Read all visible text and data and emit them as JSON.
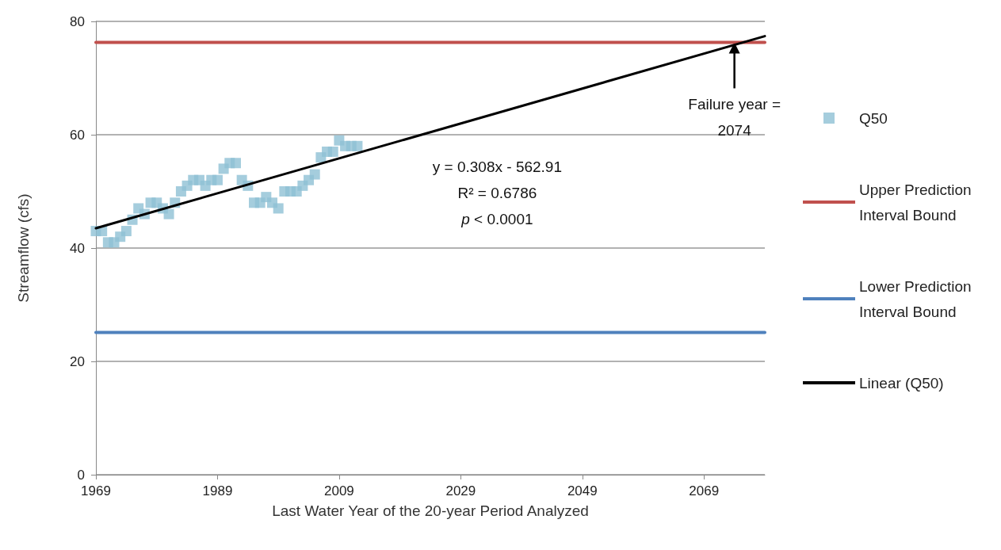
{
  "chart_data": {
    "type": "scatter",
    "xlabel": "Last Water Year of the 20-year Period Analyzed",
    "ylabel": "Streamflow (cfs)",
    "xlim": [
      1969,
      2079
    ],
    "xticks": [
      1969,
      1989,
      2009,
      2029,
      2049,
      2069
    ],
    "ylim": [
      0,
      80
    ],
    "yticks": [
      0,
      20,
      40,
      60,
      80
    ],
    "grid": "y",
    "legend": "right",
    "series": [
      {
        "name": "Q50",
        "marker": "square",
        "color": "#8fc1d4",
        "x": [
          1969,
          1970,
          1971,
          1972,
          1973,
          1974,
          1975,
          1976,
          1977,
          1978,
          1979,
          1980,
          1981,
          1982,
          1983,
          1984,
          1985,
          1986,
          1987,
          1988,
          1989,
          1990,
          1991,
          1992,
          1993,
          1994,
          1995,
          1996,
          1997,
          1998,
          1999,
          2000,
          2001,
          2002,
          2003,
          2004,
          2005,
          2006,
          2007,
          2008,
          2009,
          2010,
          2011,
          2012
        ],
        "values": [
          43,
          43,
          41,
          41,
          42,
          43,
          45,
          47,
          46,
          48,
          48,
          47,
          46,
          48,
          50,
          51,
          52,
          52,
          51,
          52,
          52,
          54,
          55,
          55,
          52,
          51,
          48,
          48,
          49,
          48,
          47,
          50,
          50,
          50,
          51,
          52,
          53,
          56,
          57,
          57,
          59,
          58,
          58,
          58
        ]
      },
      {
        "name": "Upper Prediction Interval Bound",
        "type": "line",
        "marker": "none",
        "color": "#c0504d",
        "x": [
          1969,
          2079
        ],
        "values": [
          76.3,
          76.3
        ]
      },
      {
        "name": "Lower Prediction Interval Bound",
        "type": "line",
        "marker": "none",
        "color": "#4f81bd",
        "x": [
          1969,
          2079
        ],
        "values": [
          25.1,
          25.1
        ]
      },
      {
        "name": "Linear (Q50)",
        "type": "line",
        "marker": "none",
        "color": "#000000",
        "x": [
          1969,
          2079
        ],
        "values": [
          43.5,
          77.4
        ]
      }
    ],
    "annotations": [
      "y = 0.308x - 562.91",
      "R² = 0.6786",
      "p < 0.0001",
      {
        "text": "Failure year =\n2074",
        "x": 2074,
        "y": 76.3
      }
    ]
  }
}
